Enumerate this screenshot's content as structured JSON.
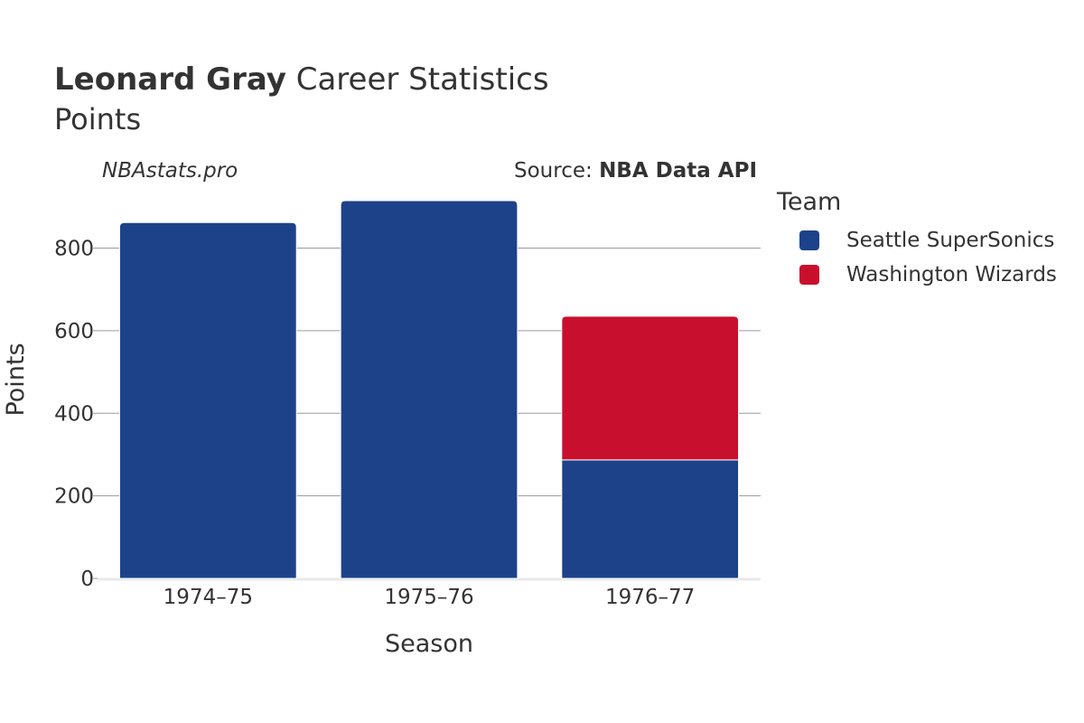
{
  "header": {
    "player_name": "Leonard Gray",
    "title_rest": " Career Statistics",
    "subtitle": "Points",
    "brand": "NBAstats.pro",
    "source_prefix": "Source: ",
    "source_name": "NBA Data API"
  },
  "legend": {
    "title": "Team",
    "items": [
      {
        "label": "Seattle SuperSonics",
        "color": "#1d428a"
      },
      {
        "label": "Washington Wizards",
        "color": "#c8102e"
      }
    ]
  },
  "chart_data": {
    "type": "bar",
    "stacked": true,
    "categories": [
      "1974–75",
      "1975–76",
      "1976–77"
    ],
    "series": [
      {
        "name": "Seattle SuperSonics",
        "color": "#1d428a",
        "values": [
          862,
          915,
          287
        ]
      },
      {
        "name": "Washington Wizards",
        "color": "#c8102e",
        "values": [
          0,
          0,
          348
        ]
      }
    ],
    "xlabel": "Season",
    "ylabel": "Points",
    "ylim": [
      0,
      915
    ],
    "yticks": [
      0,
      200,
      400,
      600,
      800
    ],
    "grid": true,
    "legend_position": "right"
  }
}
